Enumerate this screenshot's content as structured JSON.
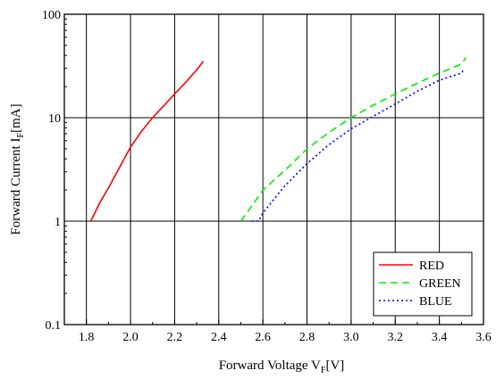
{
  "chart_data": {
    "type": "line",
    "xlabel": {
      "main": "Forward Voltage V",
      "sub": "F",
      "unit": "[V]"
    },
    "ylabel": {
      "main": "Forward Current I",
      "sub": "F",
      "unit": "[mA]"
    },
    "xlim": [
      1.7,
      3.6
    ],
    "ylim": [
      0.1,
      100
    ],
    "yscale": "log",
    "grid": true,
    "legend_position": "bottom-right",
    "xticks": [
      "1.8",
      "2.0",
      "2.2",
      "2.4",
      "2.6",
      "2.8",
      "3.0",
      "3.2",
      "3.4",
      "3.6"
    ],
    "yticks": [
      "0.1",
      "1",
      "10",
      "100"
    ],
    "series": [
      {
        "name": "RED",
        "color": "#ff0000",
        "dash": "solid",
        "x": [
          1.82,
          1.86,
          1.9,
          1.95,
          2.0,
          2.05,
          2.1,
          2.15,
          2.2,
          2.25,
          2.3,
          2.33
        ],
        "y": [
          1.0,
          1.5,
          2.1,
          3.3,
          5.2,
          7.4,
          10.0,
          13.0,
          17.0,
          22.0,
          29.0,
          35.0
        ]
      },
      {
        "name": "GREEN",
        "color": "#00ee00",
        "dash": "dashed",
        "x": [
          2.5,
          2.55,
          2.6,
          2.7,
          2.8,
          2.9,
          3.0,
          3.1,
          3.2,
          3.3,
          3.4,
          3.5,
          3.52
        ],
        "y": [
          1.0,
          1.4,
          2.0,
          3.1,
          5.0,
          7.2,
          10.0,
          13.2,
          17.0,
          21.5,
          27.0,
          33.0,
          38.0
        ]
      },
      {
        "name": "BLUE",
        "color": "#0000ff",
        "dash": "dotted",
        "x": [
          2.55,
          2.58,
          2.6,
          2.7,
          2.8,
          2.9,
          3.0,
          3.1,
          3.2,
          3.3,
          3.4,
          3.5,
          3.51
        ],
        "y": [
          1.0,
          1.0,
          1.2,
          2.2,
          3.6,
          5.5,
          7.8,
          10.3,
          13.6,
          18.0,
          23.0,
          27.0,
          29.0
        ]
      }
    ]
  }
}
